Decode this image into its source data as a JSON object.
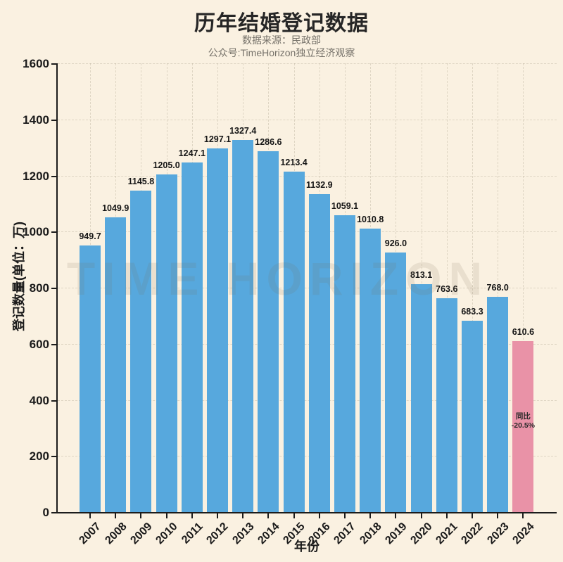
{
  "page": {
    "title": "历年结婚登记数据",
    "subtitle1": "数据来源：民政部",
    "subtitle2": "公众号:TimeHorizon独立经济观察",
    "watermark": "TIME HORIZON"
  },
  "chart_data": {
    "type": "bar",
    "title": "历年结婚登记数据",
    "xlabel": "年份",
    "ylabel": "登记数量(单位：万)",
    "categories": [
      "2007",
      "2008",
      "2009",
      "2010",
      "2011",
      "2012",
      "2013",
      "2014",
      "2015",
      "2016",
      "2017",
      "2018",
      "2019",
      "2020",
      "2021",
      "2022",
      "2023",
      "2024"
    ],
    "values": [
      949.7,
      1049.9,
      1145.8,
      1205.0,
      1247.1,
      1297.1,
      1327.4,
      1286.6,
      1213.4,
      1132.9,
      1059.1,
      1010.8,
      926.0,
      813.1,
      763.6,
      683.3,
      768.0,
      610.6
    ],
    "value_label_decimals": 1,
    "ylim": [
      0,
      1600
    ],
    "yticks": [
      0,
      200,
      400,
      600,
      800,
      1000,
      1200,
      1400,
      1600
    ],
    "grid": true,
    "legend": "none",
    "bar_color": "#57a8dd",
    "highlight": {
      "index": 17,
      "color": "#e992a7",
      "annotation_line1": "同比",
      "annotation_line2": "-20.5%"
    }
  },
  "colors": {
    "background": "#faf1e1",
    "axis": "#1c1c1c",
    "tick_text": "#1a1a1a",
    "value_text": "#151515",
    "title_text": "#262626",
    "subtitle_text": "#76726a",
    "grid": "rgba(150,140,120,0.28)",
    "watermark": "rgba(120,108,88,0.13)",
    "annotation_text": "#2a2a2a"
  }
}
